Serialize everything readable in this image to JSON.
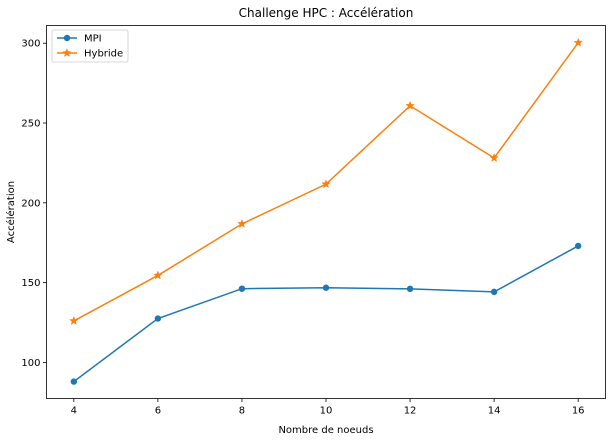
{
  "chart_data": {
    "type": "line",
    "title": "Challenge HPC : Accélération",
    "xlabel": "Nombre de noeuds",
    "ylabel": "Accélération",
    "x": [
      4,
      6,
      8,
      10,
      12,
      14,
      16
    ],
    "xticks": [
      4,
      6,
      8,
      10,
      12,
      14,
      16
    ],
    "yticks": [
      100,
      150,
      200,
      250,
      300
    ],
    "xlim": [
      3.35,
      16.65
    ],
    "ylim": [
      77.4,
      311.1
    ],
    "grid": false,
    "legend_position": "top-left",
    "series": [
      {
        "name": "MPI",
        "color": "#1f77b4",
        "marker": "circle",
        "values": [
          88,
          127.5,
          146.2,
          146.8,
          146.1,
          144.2,
          173
        ]
      },
      {
        "name": "Hybride",
        "color": "#ff7f0e",
        "marker": "star",
        "values": [
          126,
          154.5,
          186.8,
          211.7,
          260.8,
          228.1,
          300.3
        ]
      }
    ]
  }
}
